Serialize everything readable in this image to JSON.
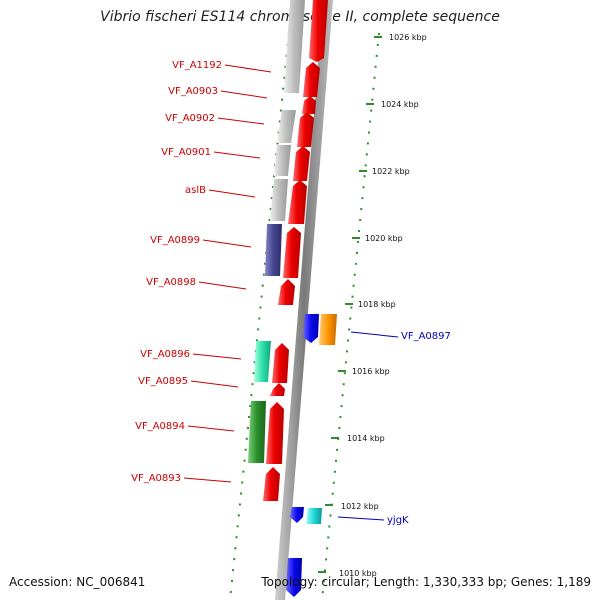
{
  "title": "Vibrio fischeri ES114 chromosome II, complete sequence",
  "footer": {
    "accession": "Accession: NC_006841",
    "topology": "Topology: circular; Length: 1,330,333 bp; Genes: 1,189"
  },
  "colors": {
    "backbone": "#888888",
    "tick": "#2e8b2e",
    "gene_forward": "#ee1111",
    "gene_reverse": "#1111ee",
    "label_forward": "#cc0000",
    "label_reverse": "#0000bb"
  },
  "scale_ticks": [
    "1026 kbp",
    "1024 kbp",
    "1022 kbp",
    "1020 kbp",
    "1018 kbp",
    "1016 kbp",
    "1014 kbp",
    "1012 kbp",
    "1010 kbp"
  ],
  "gene_labels_left": [
    "VF_A1192",
    "VF_A0903",
    "VF_A0902",
    "VF_A0901",
    "aslB",
    "VF_A0899",
    "VF_A0898",
    "VF_A0896",
    "VF_A0895",
    "VF_A0894",
    "VF_A0893"
  ],
  "gene_labels_right": [
    "VF_A0897",
    "yjgK"
  ]
}
